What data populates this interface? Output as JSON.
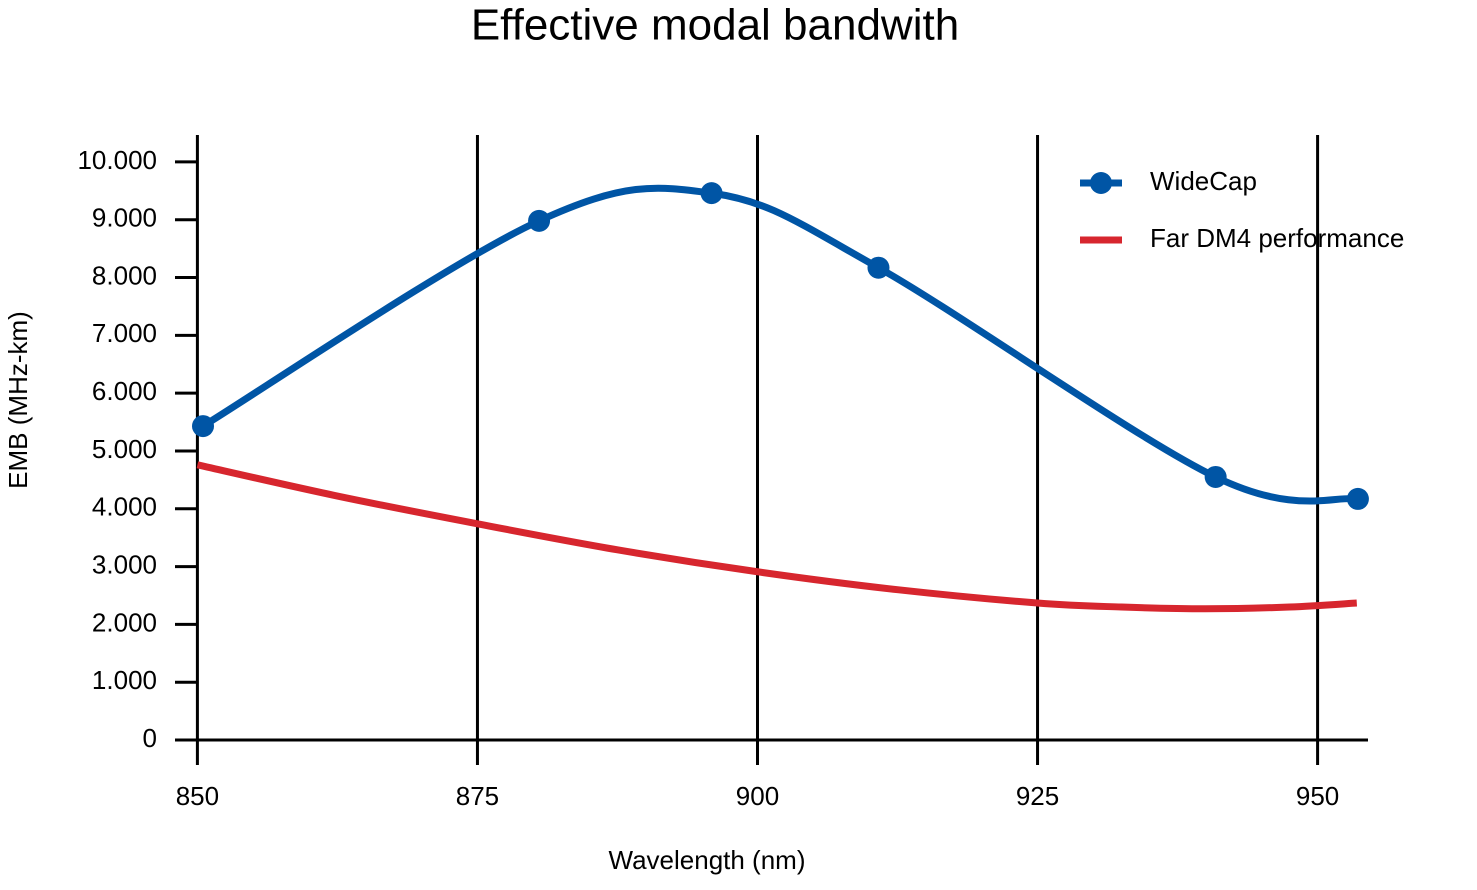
{
  "chart_data": {
    "type": "line",
    "title": "Effective modal bandwith",
    "x_label": "Wavelength (nm)",
    "y_label": "EMB (MHz-km)",
    "xlim": [
      848,
      954.5
    ],
    "ylim": [
      0,
      10500
    ],
    "xticks": [
      850,
      875,
      900,
      925,
      950
    ],
    "yticks": [
      0,
      {
        "value": 1000,
        "label": "1.000"
      },
      {
        "value": 2000,
        "label": "2.000"
      },
      {
        "value": 3000,
        "label": "3.000"
      },
      {
        "value": 4000,
        "label": "4.000"
      },
      {
        "value": 5000,
        "label": "5.000"
      },
      {
        "value": 6000,
        "label": "6.000"
      },
      {
        "value": 7000,
        "label": "7.000"
      },
      {
        "value": 8000,
        "label": "8.000"
      },
      {
        "value": 9000,
        "label": "9.000"
      },
      {
        "value": 10000,
        "label": "10.000"
      }
    ],
    "grid": "x",
    "legend": "upper right",
    "series": [
      {
        "name": "WideCap",
        "color": "#0055a5",
        "markers": true,
        "x": [
          850.5,
          880.5,
          895.9,
          910.8,
          940.9,
          953.6
        ],
        "values": [
          5430,
          8980,
          9460,
          8170,
          4550,
          4170
        ]
      },
      {
        "name": "Far DM4 performance",
        "color": "#d7262e",
        "markers": false,
        "x": [
          850,
          862.5,
          875,
          887.5,
          900,
          912.5,
          925,
          932.5,
          940,
          947.5,
          953.5
        ],
        "values": [
          4760,
          4220,
          3740,
          3290,
          2910,
          2600,
          2370,
          2300,
          2270,
          2300,
          2370
        ]
      }
    ]
  }
}
